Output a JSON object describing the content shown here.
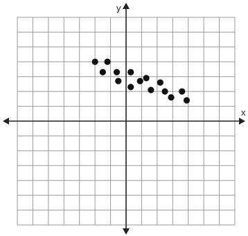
{
  "chart_data": {
    "type": "scatter",
    "xlabel": "x",
    "ylabel": "y",
    "xlim": [
      -7,
      7
    ],
    "ylim": [
      -7,
      7
    ],
    "grid": true,
    "series": [
      {
        "points": [
          [
            -2,
            4
          ],
          [
            -1.2,
            4
          ],
          [
            -1.5,
            3.3
          ],
          [
            -0.6,
            3.3
          ],
          [
            -0.5,
            2.7
          ],
          [
            0.3,
            3.3
          ],
          [
            0.3,
            2.3
          ],
          [
            0.9,
            2.7
          ],
          [
            1.3,
            2.9
          ],
          [
            1.6,
            2.1
          ],
          [
            2.2,
            2.6
          ],
          [
            2.5,
            2.0
          ],
          [
            2.9,
            1.6
          ],
          [
            3.6,
            2.0
          ],
          [
            3.9,
            1.4
          ]
        ]
      }
    ],
    "colors": {
      "points": "#111111",
      "grid": "#999999",
      "axes": "#222222"
    }
  }
}
